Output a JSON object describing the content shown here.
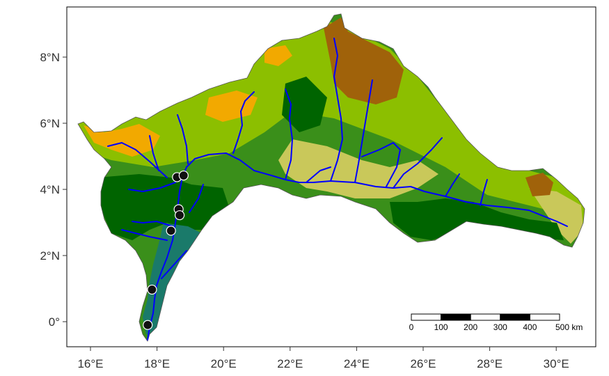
{
  "map": {
    "x_axis_ticks": [
      "16°E",
      "18°E",
      "20°E",
      "22°E",
      "24°E",
      "26°E",
      "28°E",
      "30°E"
    ],
    "y_axis_ticks": [
      "0°",
      "2°N",
      "4°N",
      "6°N",
      "8°N"
    ],
    "scale_bar": {
      "labels": [
        "0",
        "100",
        "200",
        "300",
        "400",
        "500 km"
      ]
    },
    "colors": {
      "frame": "#000000",
      "dense_forest": "#006400",
      "swamp_forest": "#1a7a6a",
      "mosaic_forest": "#2e8b2e",
      "grassland": "#8cbf00",
      "savanna": "#c9c85a",
      "cropland": "#f2a900",
      "bare_brown": "#a0620a",
      "river": "#0000ff",
      "site_marker": "#111111"
    },
    "sites": [
      {
        "lon": 18.6,
        "lat": 4.37
      },
      {
        "lon": 18.8,
        "lat": 4.42
      },
      {
        "lon": 18.65,
        "lat": 3.4
      },
      {
        "lon": 18.68,
        "lat": 3.22
      },
      {
        "lon": 18.42,
        "lat": 2.75
      },
      {
        "lon": 17.85,
        "lat": 0.97
      },
      {
        "lon": 17.72,
        "lat": -0.1
      }
    ]
  }
}
